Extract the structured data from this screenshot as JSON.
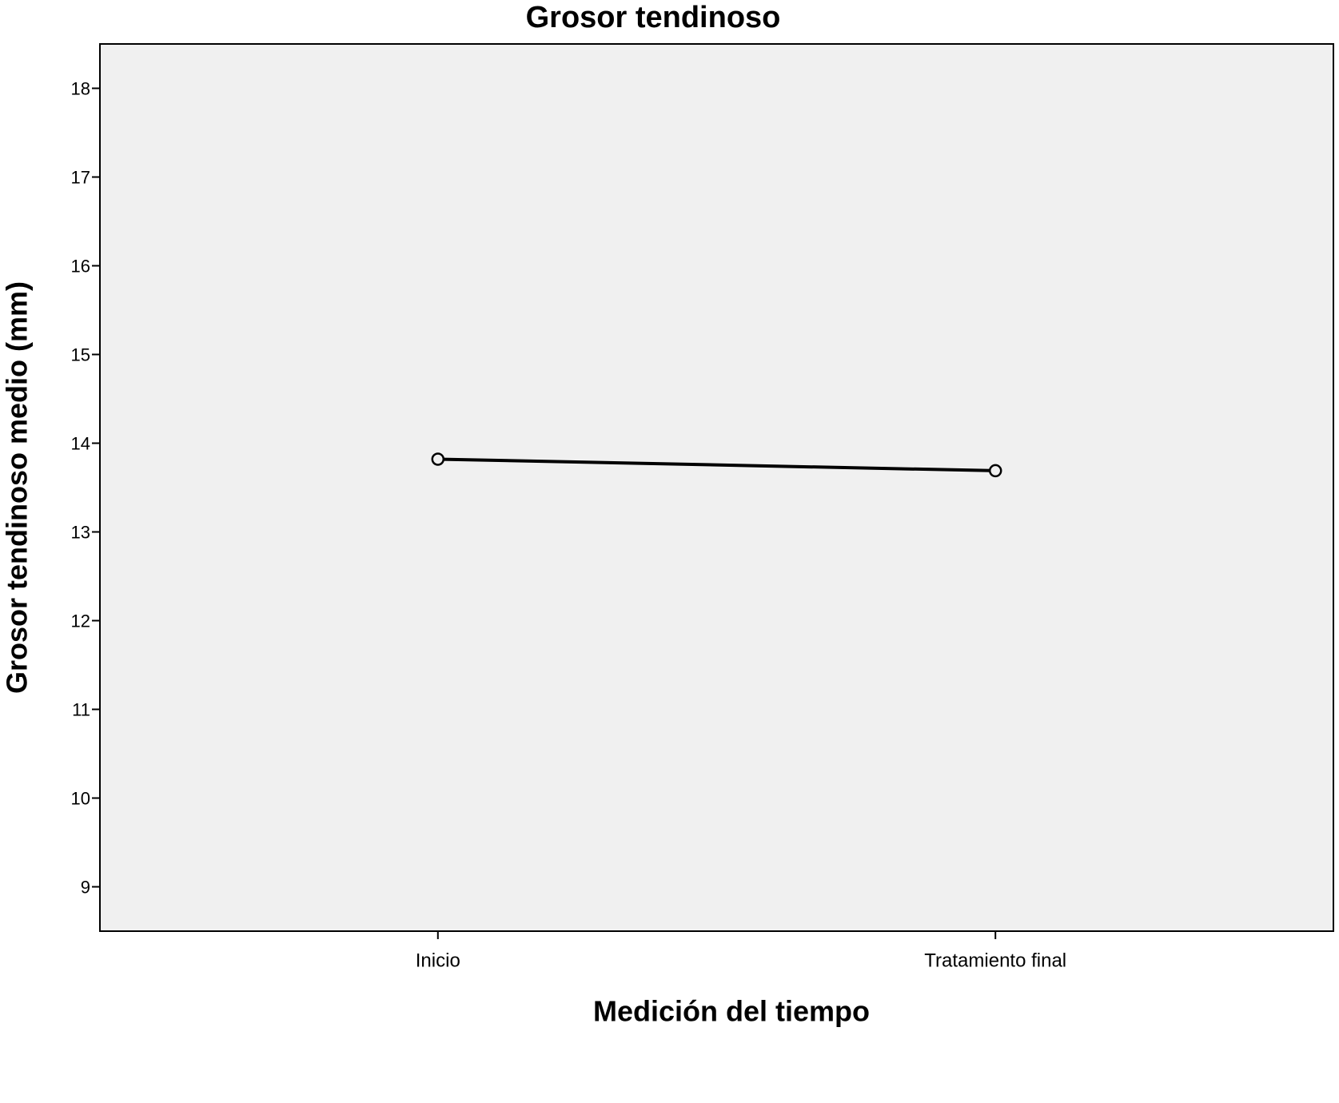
{
  "chart_data": {
    "type": "line",
    "title": "Grosor tendinoso",
    "x_label": "Medición del tiempo",
    "y_label": "Grosor tendinoso medio (mm)",
    "categories": [
      "Inicio",
      "Tratamiento final"
    ],
    "values": [
      13.82,
      13.69
    ],
    "color": "#000000",
    "plot_background": "#f0f0f0",
    "ylim": [
      8.5,
      18.5
    ],
    "yticks": [
      9,
      10,
      11,
      12,
      13,
      14,
      15,
      16,
      17,
      18
    ],
    "grid": false
  }
}
